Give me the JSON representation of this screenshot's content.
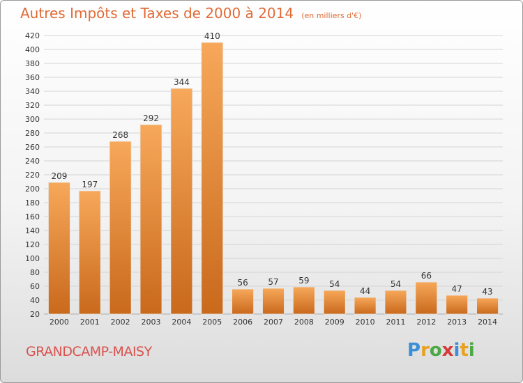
{
  "title": "Autres Impôts et Taxes de 2000 à 2014",
  "unit_note": "(en milliers d'€)",
  "commune": "GRANDCAMP-MAISY",
  "logo": {
    "text": "Proxiti",
    "letter_colors": [
      "#3a8fd6",
      "#e8a020",
      "#49a942",
      "#d63a3a",
      "#3a8fd6",
      "#e8a020",
      "#49a942"
    ]
  },
  "colors": {
    "title": "#e06a35",
    "commune": "#d9534f",
    "bar_light": "#f7a85a",
    "bar_dark": "#c9691c"
  },
  "chart_data": {
    "type": "bar",
    "categories": [
      "2000",
      "2001",
      "2002",
      "2003",
      "2004",
      "2005",
      "2006",
      "2007",
      "2008",
      "2009",
      "2010",
      "2011",
      "2012",
      "2013",
      "2014"
    ],
    "values": [
      209,
      197,
      268,
      292,
      344,
      410,
      56,
      57,
      59,
      54,
      44,
      54,
      66,
      47,
      43
    ],
    "ylim": [
      20,
      420
    ],
    "yticks": [
      20,
      40,
      60,
      80,
      100,
      120,
      140,
      160,
      180,
      200,
      220,
      240,
      260,
      280,
      300,
      320,
      340,
      360,
      380,
      400,
      420
    ],
    "grid": true,
    "xlabel": "",
    "ylabel": ""
  }
}
